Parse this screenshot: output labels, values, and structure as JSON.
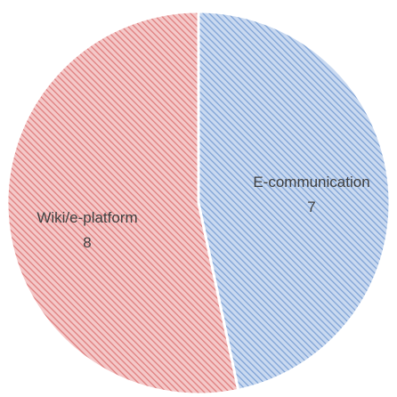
{
  "chart_data": {
    "type": "pie",
    "categories": [
      "E-communication",
      "Wiki/e-platform"
    ],
    "values": [
      7,
      8
    ],
    "colors": [
      "#8fb3e0",
      "#e88a8a"
    ],
    "hatch": "diagonal-stripes",
    "legend": "none",
    "data_labels": [
      "category",
      "value"
    ]
  }
}
